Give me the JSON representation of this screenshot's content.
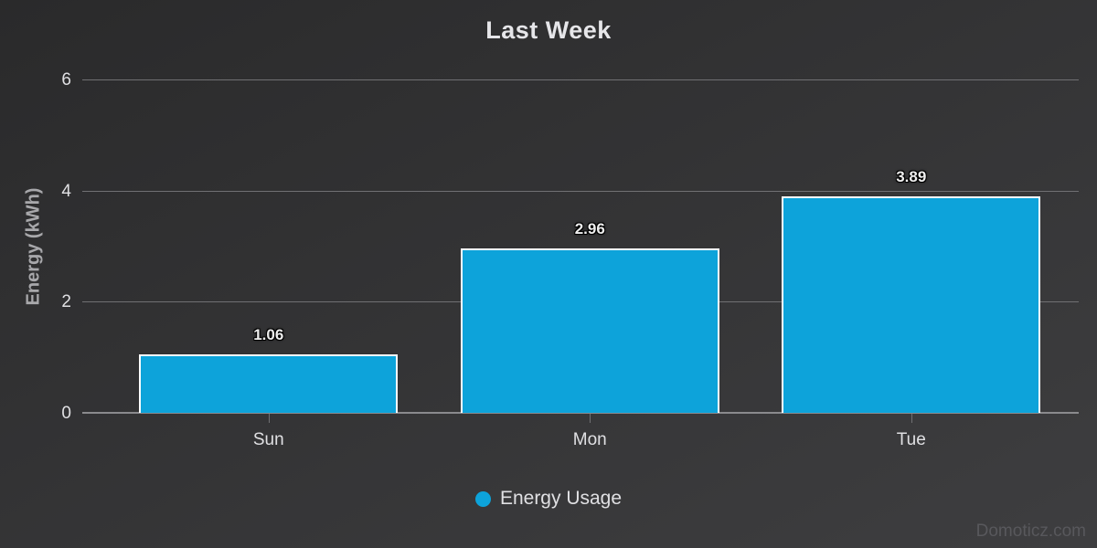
{
  "chart_data": {
    "type": "bar",
    "title": "Last Week",
    "categories": [
      "Sun",
      "Mon",
      "Tue"
    ],
    "series": [
      {
        "name": "Energy Usage",
        "values": [
          1.06,
          2.96,
          3.89
        ]
      }
    ],
    "data_labels": [
      "1.06",
      "2.96",
      "3.89"
    ],
    "xlabel": "",
    "ylabel": "Energy (kWh)",
    "ylim": [
      0,
      6
    ],
    "yticks": [
      0,
      2,
      4,
      6
    ],
    "grid": true,
    "legend_position": "bottom",
    "colors": {
      "bar_fill": "#0da3da",
      "bar_border": "#ffffff",
      "background_top": "#2a2a2b",
      "background_bottom": "#3e3e40",
      "gridline": "#707073",
      "text": "#e0e0e3"
    }
  },
  "legend": {
    "marker_icon": "circle-icon",
    "label": "Energy Usage"
  },
  "watermark": "Domoticz.com"
}
